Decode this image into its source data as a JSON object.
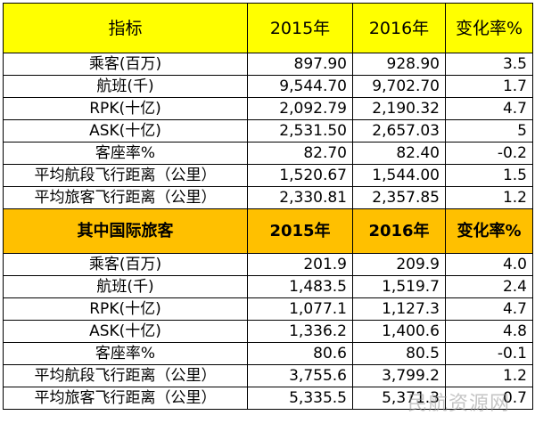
{
  "section1": {
    "header": [
      "指标",
      "2015年",
      "2016年",
      "变化率%"
    ],
    "rows": [
      [
        "乘客(百万)",
        "897.90",
        "928.90",
        "3.5"
      ],
      [
        "航班(千)",
        "9,544.70",
        "9,702.70",
        "1.7"
      ],
      [
        "RPK(十亿)",
        "2,092.79",
        "2,190.32",
        "4.7"
      ],
      [
        "ASK(十亿)",
        "2,531.50",
        "2,657.03",
        "5"
      ],
      [
        "客座率%",
        "82.70",
        "82.40",
        "-0.2"
      ],
      [
        "平均航段飞行距离（公里）",
        "1,520.67",
        "1,544.00",
        "1.5"
      ],
      [
        "平均旅客飞行距离（公里）",
        "2,330.81",
        "2,357.85",
        "1.2"
      ]
    ]
  },
  "section2": {
    "header": [
      "其中国际旅客",
      "2015年",
      "2016年",
      "变化率%"
    ],
    "rows": [
      [
        "乘客(百万)",
        "201.9",
        "209.9",
        "4.0"
      ],
      [
        "航班(千)",
        "1,483.5",
        "1,519.7",
        "2.4"
      ],
      [
        "RPK(十亿)",
        "1,077.1",
        "1,127.3",
        "4.7"
      ],
      [
        "ASK(十亿)",
        "1,336.2",
        "1,400.6",
        "4.8"
      ],
      [
        "客座率%",
        "80.6",
        "80.5",
        "-0.1"
      ],
      [
        "平均航段飞行距离（公里）",
        "3,755.6",
        "3,799.2",
        "1.2"
      ],
      [
        "平均旅客飞行距离（公里）",
        "5,335.5",
        "5,371.3",
        "0.7"
      ]
    ]
  },
  "colors": {
    "header1_bg": "#ffff00",
    "header2_bg": "#ffc000",
    "border": "#000000"
  },
  "watermark": "民航资源网"
}
